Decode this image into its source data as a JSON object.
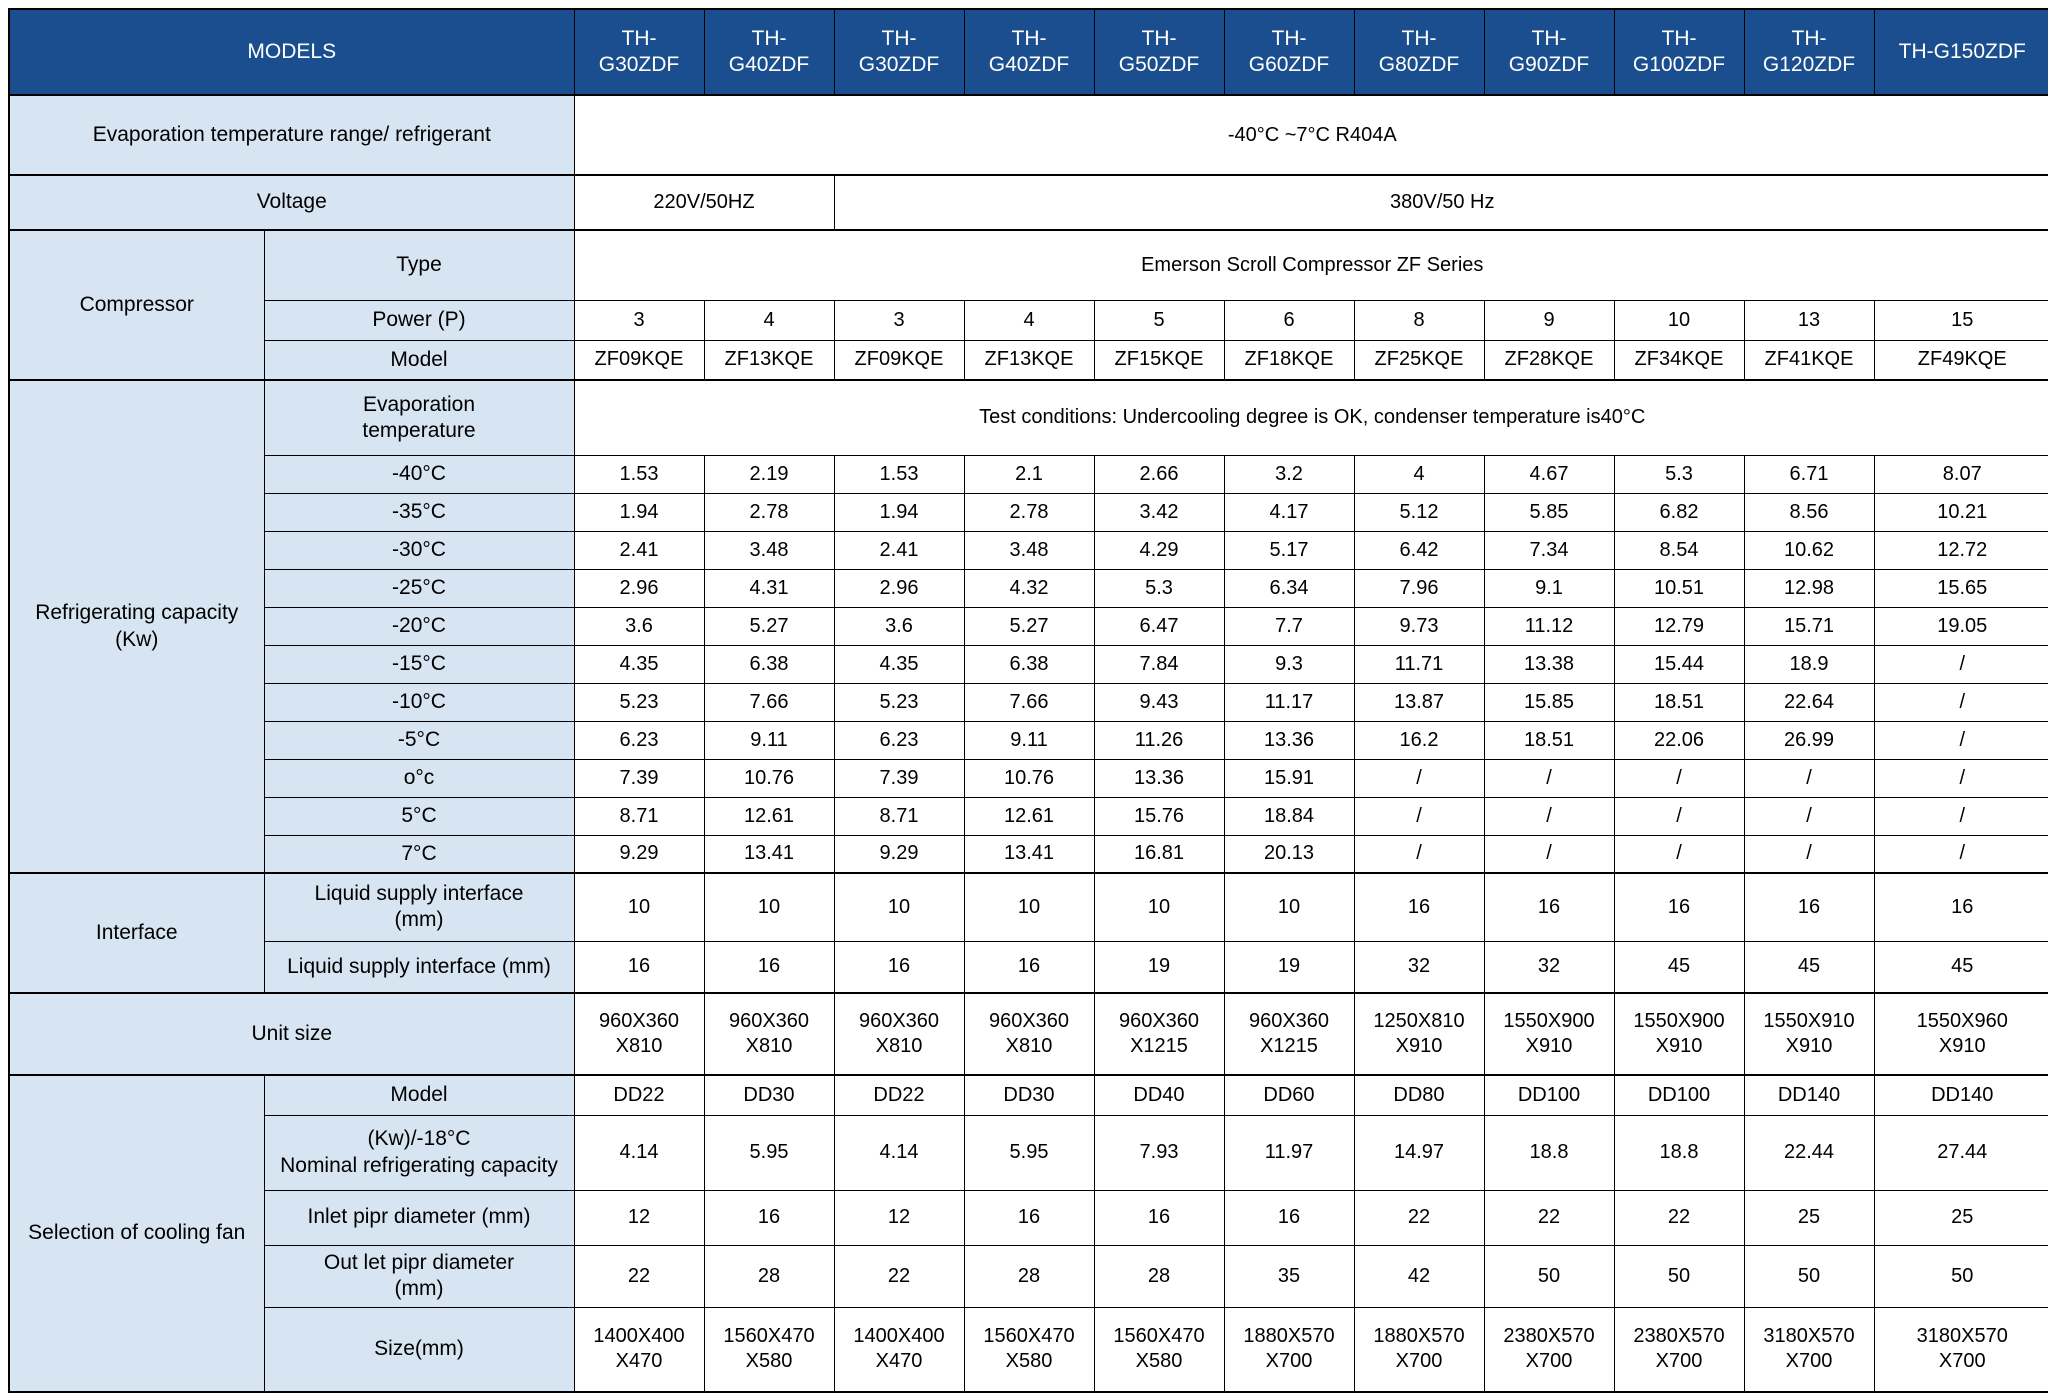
{
  "theme": {
    "header_bg": "#1b4e8e",
    "header_text": "#ffffff",
    "label_bg": "#d7e4f1",
    "cell_bg": "#ffffff",
    "border": "#000000"
  },
  "table": {
    "models_header": "MODELS",
    "model_columns": [
      "TH-\nG30ZDF",
      "TH-\nG40ZDF",
      "TH-\nG30ZDF",
      "TH-\nG40ZDF",
      "TH-\nG50ZDF",
      "TH-\nG60ZDF",
      "TH-\nG80ZDF",
      "TH-\nG90ZDF",
      "TH-\nG100ZDF",
      "TH-\nG120ZDF",
      "TH-G150ZDF"
    ],
    "rows": [
      {
        "label": "Evaporation temperature range/ refrigerant",
        "label_span": 2,
        "cells": [
          {
            "text": "-40°C ~7°C R404A",
            "span": 11
          }
        ]
      },
      {
        "label": "Voltage",
        "label_span": 2,
        "cells": [
          {
            "text": "220V/50HZ",
            "span": 2
          },
          {
            "text": "380V/50 Hz",
            "span": 9
          }
        ]
      },
      {
        "category": {
          "text": "Compressor",
          "rowspan": 3
        },
        "label": "Type",
        "cells": [
          {
            "text": "Emerson Scroll Compressor ZF Series",
            "span": 11
          }
        ]
      },
      {
        "label": "Power (P)",
        "cells": [
          "3",
          "4",
          "3",
          "4",
          "5",
          "6",
          "8",
          "9",
          "10",
          "13",
          "15"
        ]
      },
      {
        "label": "Model",
        "cells": [
          "ZF09KQE",
          "ZF13KQE",
          "ZF09KQE",
          "ZF13KQE",
          "ZF15KQE",
          "ZF18KQE",
          "ZF25KQE",
          "ZF28KQE",
          "ZF34KQE",
          "ZF41KQE",
          "ZF49KQE"
        ]
      },
      {
        "category": {
          "text": "Refrigerating capacity (Kw)",
          "rowspan": 12
        },
        "label": "Evaporation\ntemperature",
        "cells": [
          {
            "text": "Test conditions: Undercooling degree is OK, condenser temperature is40°C",
            "span": 11
          }
        ]
      },
      {
        "label": "-40°C",
        "cells": [
          "1.53",
          "2.19",
          "1.53",
          "2.1",
          "2.66",
          "3.2",
          "4",
          "4.67",
          "5.3",
          "6.71",
          "8.07"
        ]
      },
      {
        "label": "-35°C",
        "cells": [
          "1.94",
          "2.78",
          "1.94",
          "2.78",
          "3.42",
          "4.17",
          "5.12",
          "5.85",
          "6.82",
          "8.56",
          "10.21"
        ]
      },
      {
        "label": "-30°C",
        "cells": [
          "2.41",
          "3.48",
          "2.41",
          "3.48",
          "4.29",
          "5.17",
          "6.42",
          "7.34",
          "8.54",
          "10.62",
          "12.72"
        ]
      },
      {
        "label": "-25°C",
        "cells": [
          "2.96",
          "4.31",
          "2.96",
          "4.32",
          "5.3",
          "6.34",
          "7.96",
          "9.1",
          "10.51",
          "12.98",
          "15.65"
        ]
      },
      {
        "label": "-20°C",
        "cells": [
          "3.6",
          "5.27",
          "3.6",
          "5.27",
          "6.47",
          "7.7",
          "9.73",
          "11.12",
          "12.79",
          "15.71",
          "19.05"
        ]
      },
      {
        "label": "-15°C",
        "cells": [
          "4.35",
          "6.38",
          "4.35",
          "6.38",
          "7.84",
          "9.3",
          "11.71",
          "13.38",
          "15.44",
          "18.9",
          "/"
        ]
      },
      {
        "label": "-10°C",
        "cells": [
          "5.23",
          "7.66",
          "5.23",
          "7.66",
          "9.43",
          "11.17",
          "13.87",
          "15.85",
          "18.51",
          "22.64",
          "/"
        ]
      },
      {
        "label": "-5°C",
        "cells": [
          "6.23",
          "9.11",
          "6.23",
          "9.11",
          "11.26",
          "13.36",
          "16.2",
          "18.51",
          "22.06",
          "26.99",
          "/"
        ]
      },
      {
        "label": "o°c",
        "cells": [
          "7.39",
          "10.76",
          "7.39",
          "10.76",
          "13.36",
          "15.91",
          "/",
          "/",
          "/",
          "/",
          "/"
        ]
      },
      {
        "label": "5°C",
        "cells": [
          "8.71",
          "12.61",
          "8.71",
          "12.61",
          "15.76",
          "18.84",
          "/",
          "/",
          "/",
          "/",
          "/"
        ]
      },
      {
        "label": "7°C",
        "cells": [
          "9.29",
          "13.41",
          "9.29",
          "13.41",
          "16.81",
          "20.13",
          "/",
          "/",
          "/",
          "/",
          "/"
        ]
      },
      {
        "category": {
          "text": "Interface",
          "rowspan": 2
        },
        "label": "Liquid supply interface\n(mm)",
        "cells": [
          "10",
          "10",
          "10",
          "10",
          "10",
          "10",
          "16",
          "16",
          "16",
          "16",
          "16"
        ]
      },
      {
        "label": "Liquid supply interface (mm)",
        "cells": [
          "16",
          "16",
          "16",
          "16",
          "19",
          "19",
          "32",
          "32",
          "45",
          "45",
          "45"
        ]
      },
      {
        "label": "Unit size",
        "label_span": 2,
        "cells": [
          "960X360\nX810",
          "960X360\nX810",
          "960X360\nX810",
          "960X360\nX810",
          "960X360\nX1215",
          "960X360\nX1215",
          "1250X810\nX910",
          "1550X900\nX910",
          "1550X900\nX910",
          "1550X910\nX910",
          "1550X960\nX910"
        ]
      },
      {
        "category": {
          "text": "Selection of cooling fan",
          "rowspan": 5
        },
        "label": "Model",
        "cells": [
          "DD22",
          "DD30",
          "DD22",
          "DD30",
          "DD40",
          "DD60",
          "DD80",
          "DD100",
          "DD100",
          "DD140",
          "DD140"
        ]
      },
      {
        "label": "(Kw)/-18°C\nNominal refrigerating capacity",
        "cells": [
          "4.14",
          "5.95",
          "4.14",
          "5.95",
          "7.93",
          "11.97",
          "14.97",
          "18.8",
          "18.8",
          "22.44",
          "27.44"
        ]
      },
      {
        "label": "Inlet pipr diameter (mm)",
        "cells": [
          "12",
          "16",
          "12",
          "16",
          "16",
          "16",
          "22",
          "22",
          "22",
          "25",
          "25"
        ]
      },
      {
        "label": "Out let pipr diameter\n(mm)",
        "cells": [
          "22",
          "28",
          "22",
          "28",
          "28",
          "35",
          "42",
          "50",
          "50",
          "50",
          "50"
        ]
      },
      {
        "label": "Size(mm)",
        "cells": [
          "1400X400\nX470",
          "1560X470\nX580",
          "1400X400\nX470",
          "1560X470\nX580",
          "1560X470\nX580",
          "1880X570\nX700",
          "1880X570\nX700",
          "2380X570\nX700",
          "2380X570\nX700",
          "3180X570\nX700",
          "3180X570\nX700"
        ]
      }
    ]
  }
}
